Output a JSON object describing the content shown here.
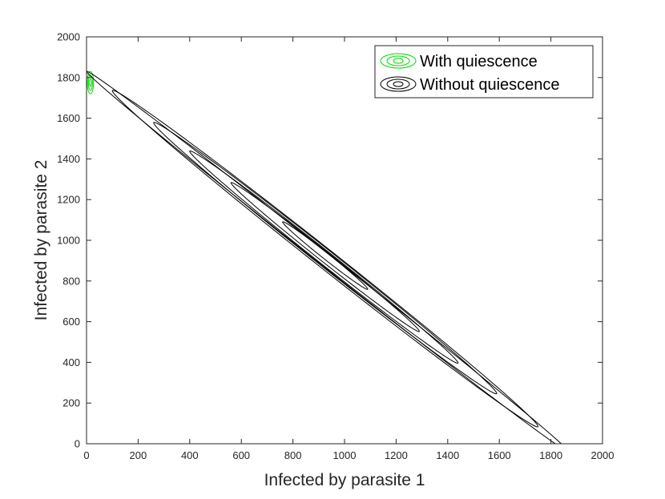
{
  "chart_data": {
    "type": "contour",
    "title": "",
    "xlabel": "Infected by parasite 1",
    "ylabel": "Infected by parasite 2",
    "xlim": [
      0,
      2000
    ],
    "ylim": [
      0,
      2000
    ],
    "xticks": [
      0,
      200,
      400,
      600,
      800,
      1000,
      1200,
      1400,
      1600,
      1800,
      2000
    ],
    "yticks": [
      0,
      200,
      400,
      600,
      800,
      1000,
      1200,
      1400,
      1600,
      1800,
      2000
    ],
    "grid": false,
    "legend_position": "top-right",
    "series": [
      {
        "name": "With quiescence",
        "color": "#00dd00",
        "center": [
          15,
          1775
        ],
        "contours": [
          {
            "x_half_width": 4,
            "y_half_width": 18
          },
          {
            "x_half_width": 8,
            "y_half_width": 38
          },
          {
            "x_half_width": 12,
            "y_half_width": 55
          }
        ]
      },
      {
        "name": "Without quiescence",
        "color": "#000000",
        "center": [
          935,
          935
        ],
        "contours": [
          {
            "diag_extent": [
              760,
              1090
            ],
            "x_plus_y": [
              1830,
              1870
            ]
          },
          {
            "diag_extent": [
              560,
              1290
            ],
            "x_plus_y": [
              1810,
              1875
            ]
          },
          {
            "diag_extent": [
              400,
              1440
            ],
            "x_plus_y": [
              1795,
              1880
            ]
          },
          {
            "diag_extent": [
              260,
              1590
            ],
            "x_plus_y": [
              1785,
              1890
            ]
          },
          {
            "diag_extent": [
              100,
              1750
            ],
            "x_plus_y": [
              1775,
              1895
            ]
          },
          {
            "diag_extent": [
              0,
              1870
            ],
            "x_plus_y": [
              1790,
              1870
            ]
          }
        ]
      }
    ]
  }
}
